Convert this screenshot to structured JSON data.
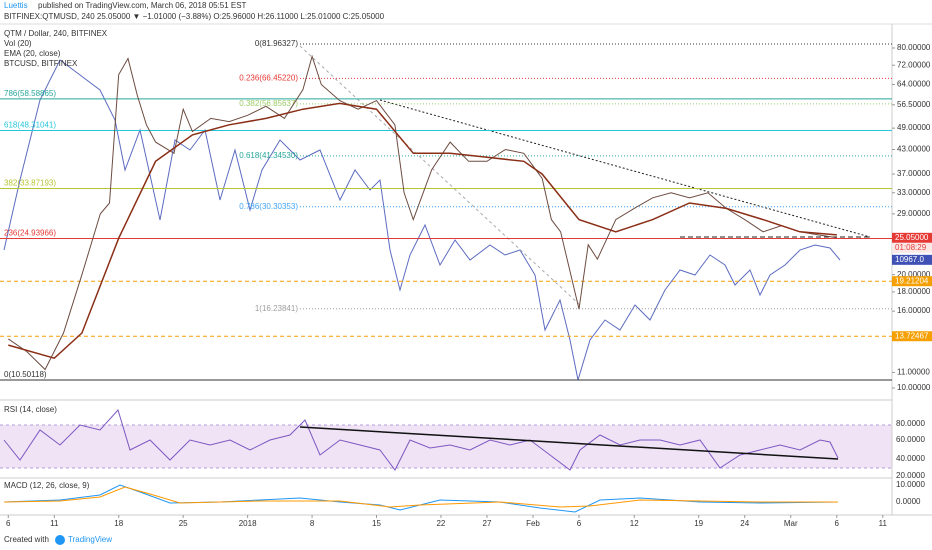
{
  "header": {
    "author": "Luettis",
    "published": "published on TradingView.com, March 06, 2018 05:51 EST",
    "quote": "BITFINEX:QTMUSD, 240 25.05000 ▼ −1.01000 (−3.88%) O:25.96000 H:26.11000 L:25.01000 C:25.05000"
  },
  "legend": [
    "QTM / Dollar, 240, BITFINEX",
    "Vol (20)",
    "EMA (20, close)",
    "BTCUSD, BITFINEX"
  ],
  "chart_data": {
    "type": "line",
    "log_scale": true,
    "xlim": [
      -0.9,
      96
    ],
    "xticks": [
      {
        "value": 0,
        "label": "6"
      },
      {
        "value": 5,
        "label": "11"
      },
      {
        "value": 12,
        "label": "18"
      },
      {
        "value": 19,
        "label": "25"
      },
      {
        "value": 26,
        "label": "2018"
      },
      {
        "value": 33,
        "label": "8"
      },
      {
        "value": 40,
        "label": "15"
      },
      {
        "value": 47,
        "label": "22"
      },
      {
        "value": 52,
        "label": "27"
      },
      {
        "value": 57,
        "label": "Feb"
      },
      {
        "value": 62,
        "label": "6"
      },
      {
        "value": 68,
        "label": "12"
      },
      {
        "value": 75,
        "label": "19"
      },
      {
        "value": 80,
        "label": "24"
      },
      {
        "value": 85,
        "label": "Mar"
      },
      {
        "value": 90,
        "label": "6"
      },
      {
        "value": 95,
        "label": "11"
      }
    ],
    "ylim": [
      9.58,
      90.4
    ],
    "yticks": [
      {
        "value": 80,
        "label": "80.00000"
      },
      {
        "value": 72,
        "label": "72.00000"
      },
      {
        "value": 64,
        "label": "64.00000"
      },
      {
        "value": 56.5,
        "label": "56.50000"
      },
      {
        "value": 49,
        "label": "49.00000"
      },
      {
        "value": 43,
        "label": "43.00000"
      },
      {
        "value": 37,
        "label": "37.00000"
      },
      {
        "value": 33,
        "label": "33.00000"
      },
      {
        "value": 29,
        "label": "29.00000"
      },
      {
        "value": 20,
        "label": "20.00000"
      },
      {
        "value": 18,
        "label": "18.00000"
      },
      {
        "value": 16,
        "label": "16.00000"
      },
      {
        "value": 11,
        "label": "11.00000"
      },
      {
        "value": 10,
        "label": "10.00000"
      }
    ],
    "series": [
      {
        "name": "QTM / Dollar, 240, BITFINEX",
        "color": "#6d4c41",
        "x": [
          0,
          2,
          4,
          6,
          8,
          10,
          11,
          12,
          13,
          14,
          15,
          16,
          18,
          19,
          20,
          22,
          24,
          26,
          28,
          30,
          32,
          33,
          34,
          36,
          38,
          40,
          42,
          43,
          44,
          46,
          48,
          50,
          52,
          54,
          56,
          58,
          59,
          60,
          62,
          63,
          64,
          66,
          68,
          70,
          72,
          74,
          76,
          78,
          80,
          82,
          84,
          86,
          88,
          90
        ],
        "values": [
          13.5,
          12.5,
          11.2,
          14,
          20,
          29,
          31,
          68,
          75,
          60,
          50,
          45,
          42,
          55,
          48,
          52,
          51,
          53,
          56,
          52,
          62,
          76,
          64,
          58,
          55,
          58,
          50,
          33,
          28,
          38,
          45,
          40,
          40,
          43,
          42,
          36,
          28,
          26,
          16.2,
          24,
          22,
          28,
          30,
          32,
          33,
          32,
          33,
          30,
          28,
          26,
          27,
          26,
          25.5,
          25.05
        ]
      },
      {
        "name": "EMA (20, close)",
        "color": "#8b2e16",
        "x": [
          0,
          5,
          8,
          12,
          16,
          20,
          24,
          28,
          32,
          36,
          40,
          44,
          48,
          52,
          56,
          58,
          62,
          66,
          70,
          74,
          78,
          82,
          86,
          90
        ],
        "values": [
          13,
          12,
          14,
          25,
          40,
          47,
          50,
          52,
          55,
          57,
          55,
          42,
          42,
          41,
          40,
          37,
          28,
          26,
          28,
          31,
          30,
          28,
          26,
          25.5
        ]
      }
    ],
    "left_levels": [
      {
        "label": "786(58.58865)",
        "value": 58.58865,
        "color": "#26a69a",
        "style": "solid"
      },
      {
        "label": "618(48.31041)",
        "value": 48.31041,
        "color": "#26c6da",
        "style": "solid"
      },
      {
        "label": "382(33.87193)",
        "value": 33.87193,
        "color": "#b5c531",
        "style": "solid"
      },
      {
        "label": "236(24.93966)",
        "value": 24.93966,
        "color": "#e53935",
        "style": "solid"
      },
      {
        "label": "0(10.50118)",
        "value": 10.50118,
        "color": "#333333",
        "style": "solid"
      }
    ],
    "right_levels": [
      {
        "label": "0(81.96327)",
        "value": 81.96327,
        "color": "#333333",
        "style": "dotted"
      },
      {
        "label": "0.236(66.45220)",
        "value": 66.4522,
        "color": "#e53935",
        "style": "dotted"
      },
      {
        "label": "0.382(56.85637)",
        "value": 56.85637,
        "color": "#9ccc65",
        "style": "dotted"
      },
      {
        "label": "0.618(41.34530)",
        "value": 41.3453,
        "color": "#26a69a",
        "style": "dotted"
      },
      {
        "label": "0.786(30.30353)",
        "value": 30.30353,
        "color": "#42a5f5",
        "style": "dotted"
      },
      {
        "label": "1(16.23841)",
        "value": 16.23841,
        "color": "#9e9e9e",
        "style": "dotted"
      }
    ],
    "price_tags": [
      {
        "value": 25.05,
        "label": "25.05000",
        "color": "#e53935"
      },
      {
        "value": 19.21204,
        "label": "19.21204",
        "color": "#f59f00"
      },
      {
        "value": 13.72467,
        "label": "13.72467",
        "color": "#f59f00"
      }
    ],
    "countdown": "01:08:29",
    "btc_tag": "10967.0"
  },
  "rsi": {
    "title": "RSI (14, close)",
    "ticks": [
      "80.0000",
      "60.0000",
      "40.0000",
      "20.0000"
    ]
  },
  "macd": {
    "title": "MACD (12, 26, close, 9)",
    "ticks": [
      "10.0000",
      "0.0000"
    ]
  },
  "footer": {
    "created": "Created with",
    "brand": "TradingView"
  }
}
